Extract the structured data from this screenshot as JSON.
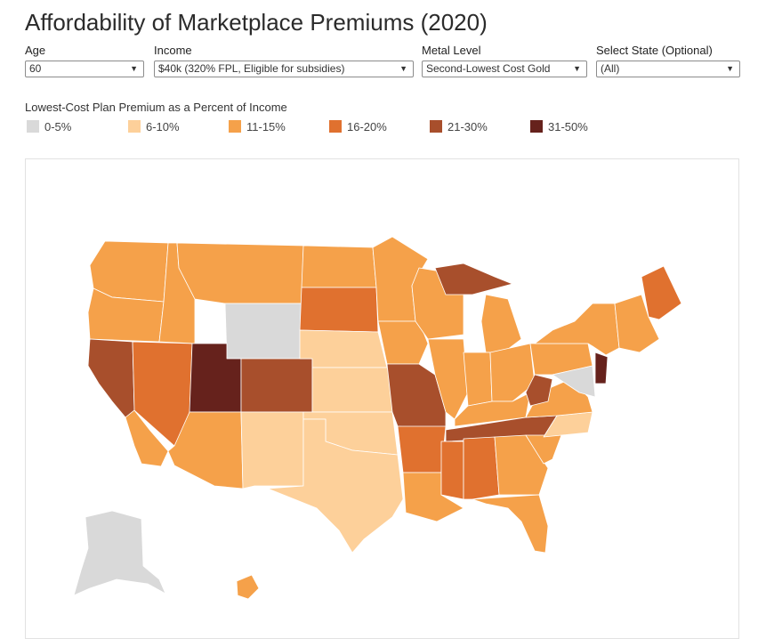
{
  "title": "Affordability of Marketplace Premiums (2020)",
  "filters": {
    "age": {
      "label": "Age",
      "value": "60"
    },
    "income": {
      "label": "Income",
      "value": "$40k (320% FPL, Eligible for subsidies)"
    },
    "metal": {
      "label": "Metal Level",
      "value": "Second-Lowest Cost Gold"
    },
    "state": {
      "label": "Select State (Optional)",
      "value": "(All)"
    }
  },
  "legend": {
    "title": "Lowest-Cost Plan Premium as a Percent of Income",
    "items": [
      {
        "label": "0-5%",
        "color": "#d9d9d9"
      },
      {
        "label": "6-10%",
        "color": "#fdd09a"
      },
      {
        "label": "11-15%",
        "color": "#f5a14a"
      },
      {
        "label": "16-20%",
        "color": "#e0712f"
      },
      {
        "label": "21-30%",
        "color": "#a84f2c"
      },
      {
        "label": "31-50%",
        "color": "#66221c"
      }
    ]
  },
  "map": {
    "background": "#ffffff",
    "border_color": "#ffffff",
    "regions": [
      {
        "id": "washington",
        "cls": 2
      },
      {
        "id": "oregon",
        "cls": 2
      },
      {
        "id": "california-north",
        "cls": 4
      },
      {
        "id": "california-south",
        "cls": 2
      },
      {
        "id": "nevada",
        "cls": 3
      },
      {
        "id": "idaho",
        "cls": 2
      },
      {
        "id": "montana",
        "cls": 2
      },
      {
        "id": "wyoming",
        "cls": 0
      },
      {
        "id": "utah",
        "cls": 5
      },
      {
        "id": "colorado",
        "cls": 4
      },
      {
        "id": "arizona",
        "cls": 2
      },
      {
        "id": "new-mexico",
        "cls": 1
      },
      {
        "id": "north-dakota",
        "cls": 2
      },
      {
        "id": "south-dakota",
        "cls": 3
      },
      {
        "id": "nebraska",
        "cls": 1
      },
      {
        "id": "kansas",
        "cls": 1
      },
      {
        "id": "oklahoma",
        "cls": 1
      },
      {
        "id": "texas",
        "cls": 1
      },
      {
        "id": "minnesota",
        "cls": 2
      },
      {
        "id": "iowa",
        "cls": 2
      },
      {
        "id": "missouri",
        "cls": 4
      },
      {
        "id": "arkansas",
        "cls": 3
      },
      {
        "id": "louisiana",
        "cls": 2
      },
      {
        "id": "wisconsin",
        "cls": 2
      },
      {
        "id": "michigan-upper",
        "cls": 4
      },
      {
        "id": "michigan-lower",
        "cls": 2
      },
      {
        "id": "illinois",
        "cls": 2
      },
      {
        "id": "indiana",
        "cls": 2
      },
      {
        "id": "ohio",
        "cls": 2
      },
      {
        "id": "kentucky",
        "cls": 2
      },
      {
        "id": "tennessee",
        "cls": 4
      },
      {
        "id": "mississippi",
        "cls": 3
      },
      {
        "id": "alabama",
        "cls": 3
      },
      {
        "id": "georgia",
        "cls": 2
      },
      {
        "id": "florida",
        "cls": 2
      },
      {
        "id": "south-carolina",
        "cls": 2
      },
      {
        "id": "north-carolina",
        "cls": 1
      },
      {
        "id": "virginia",
        "cls": 2
      },
      {
        "id": "west-virginia",
        "cls": 4
      },
      {
        "id": "pennsylvania",
        "cls": 2
      },
      {
        "id": "new-york",
        "cls": 2
      },
      {
        "id": "new-jersey",
        "cls": 5
      },
      {
        "id": "maryland",
        "cls": 0
      },
      {
        "id": "new-england",
        "cls": 2
      },
      {
        "id": "maine",
        "cls": 3
      },
      {
        "id": "alaska",
        "cls": 0
      },
      {
        "id": "hawaii",
        "cls": 2
      }
    ]
  }
}
